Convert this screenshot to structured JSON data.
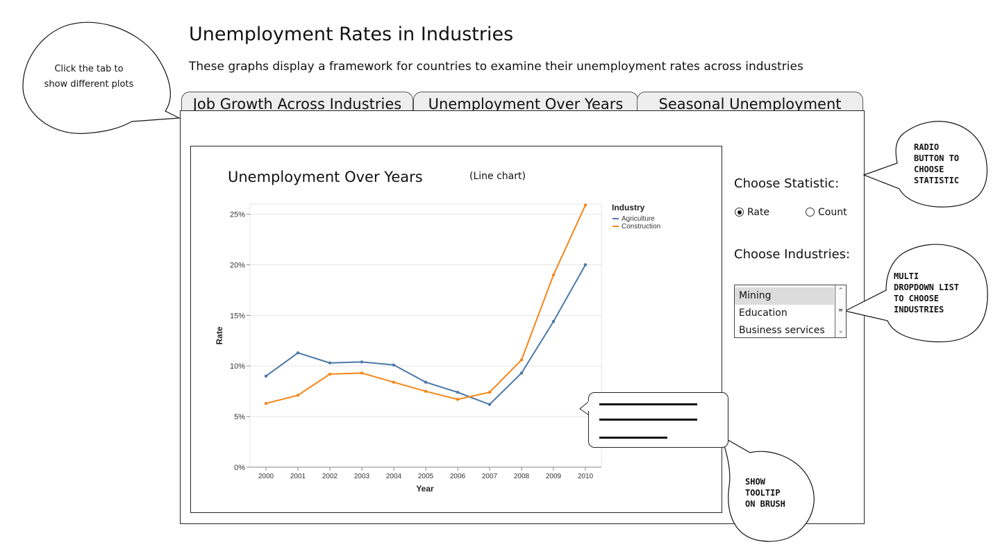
{
  "header": {
    "title": "Unemployment Rates in Industries",
    "subtitle": "These graphs display a framework for countries to examine their unemployment rates across industries"
  },
  "tabs": [
    {
      "label": "Job Growth Across Industries"
    },
    {
      "label": "Unemployment Over Years"
    },
    {
      "label": "Seasonal Unemployment"
    }
  ],
  "chart_panel": {
    "heading": "Unemployment Over Years",
    "type_note": "(Line chart)"
  },
  "chart_data": {
    "type": "line",
    "x": [
      2000,
      2001,
      2002,
      2003,
      2004,
      2005,
      2006,
      2007,
      2008,
      2009,
      2010
    ],
    "xlabel": "Year",
    "ylabel": "Rate",
    "ylim": [
      0,
      26
    ],
    "yticks": [
      "0%",
      "5%",
      "10%",
      "15%",
      "20%",
      "25%"
    ],
    "ytick_values": [
      0,
      5,
      10,
      15,
      20,
      25
    ],
    "legend_title": "Industry",
    "legend_position": "top-right",
    "grid": true,
    "series": [
      {
        "name": "Agriculture",
        "color": "#4c78a8",
        "values": [
          9.0,
          11.3,
          10.3,
          10.4,
          10.1,
          8.4,
          7.4,
          6.2,
          9.3,
          14.4,
          20.0
        ]
      },
      {
        "name": "Construction",
        "color": "#f58518",
        "values": [
          6.3,
          7.1,
          9.2,
          9.3,
          8.4,
          7.5,
          6.7,
          7.4,
          10.6,
          19.0,
          25.9
        ]
      }
    ]
  },
  "controls": {
    "statistic_label": "Choose Statistic:",
    "rate_label": "Rate",
    "count_label": "Count",
    "selected_statistic": "Rate",
    "industries_label": "Choose Industries:",
    "industries": [
      "Mining",
      "Education",
      "Business services"
    ],
    "selected_industry": "Mining"
  },
  "callouts": {
    "tab_note_line1": "Click the tab to",
    "tab_note_line2": "show different plots",
    "radio_note": [
      "RADIO",
      "BUTTON TO",
      "CHOOSE",
      "STATISTIC"
    ],
    "list_note": [
      "MULTI",
      "DROPDOWN LIST",
      "TO CHOOSE",
      "INDUSTRIES"
    ],
    "tooltip_note": [
      "SHOW",
      "TOOLTIP",
      "ON BRUSH"
    ]
  }
}
